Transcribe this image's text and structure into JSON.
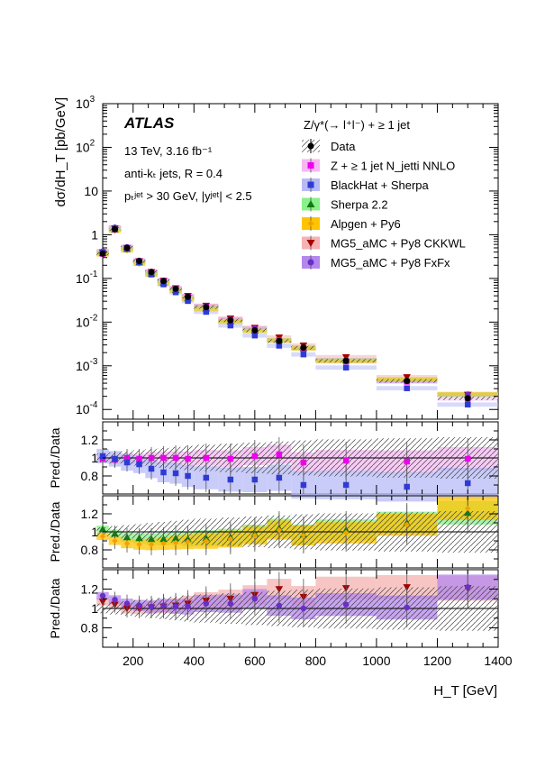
{
  "chart_data": {
    "type": "scatter",
    "title": "",
    "xlabel": "H_T [GeV]",
    "ylabel": "dσ/dH_T [pb/GeV]",
    "ratio_ylabel": "Pred./Data",
    "xlim": [
      100,
      1400
    ],
    "ylim": [
      6e-05,
      1000
    ],
    "yscale": "log",
    "ratio_ylim": [
      0.6,
      1.4
    ],
    "x_ticks": [
      200,
      400,
      600,
      800,
      1000,
      1200,
      1400
    ],
    "ratio_ticks": [
      0.8,
      1,
      1.2
    ],
    "experiment": "ATLAS",
    "energy_lumi": "13 TeV, 3.16 fb⁻¹",
    "jet_algo": "anti-kₜ jets, R = 0.4",
    "jet_cuts": "pₜʲᵉᵗ > 30 GeV, |yʲᵉᵗ| < 2.5",
    "process": "Z/γ*(→ l⁺l⁻) + ≥ 1 jet",
    "legend_position": "top-right",
    "bin_edges": [
      80,
      120,
      160,
      200,
      240,
      280,
      320,
      360,
      400,
      480,
      560,
      640,
      720,
      800,
      1000,
      1200,
      1400
    ],
    "series": [
      {
        "name": "Data",
        "color": "#000000",
        "marker": "circle",
        "values": [
          0.37,
          1.35,
          0.5,
          0.25,
          0.14,
          0.087,
          0.058,
          0.038,
          0.022,
          0.011,
          0.0065,
          0.0037,
          0.0026,
          0.0013,
          0.00045,
          0.00018
        ],
        "ratio": [
          1,
          1,
          1,
          1,
          1,
          1,
          1,
          1,
          1,
          1,
          1,
          1,
          1,
          1,
          1,
          1
        ]
      },
      {
        "name": "Z + ≥ 1 jet N_jetti NNLO",
        "color": "#ee00ee",
        "band": "#f6b8f3",
        "marker": "square",
        "ratio_panel": 0,
        "ratio": [
          0.99,
          0.98,
          1.0,
          0.99,
          1.0,
          1.0,
          1.0,
          0.99,
          1.0,
          0.99,
          1.02,
          1.04,
          0.95,
          0.97,
          0.96,
          0.99
        ]
      },
      {
        "name": "BlackHat + Sherpa",
        "color": "#2f3ad6",
        "band": "#b7bbf5",
        "marker": "square",
        "ratio_panel": 0,
        "ratio": [
          1.02,
          0.99,
          0.95,
          0.93,
          0.88,
          0.84,
          0.83,
          0.8,
          0.78,
          0.76,
          0.76,
          0.78,
          0.7,
          0.7,
          0.68,
          0.72
        ]
      },
      {
        "name": "Sherpa 2.2",
        "color": "#117a11",
        "band": "#8af08a",
        "marker": "triangle-up",
        "ratio_panel": 1,
        "ratio": [
          1.03,
          0.98,
          0.94,
          0.93,
          0.92,
          0.92,
          0.93,
          0.92,
          0.93,
          0.94,
          0.98,
          1.04,
          0.97,
          1.02,
          1.1,
          1.21
        ]
      },
      {
        "name": "Alpgen + Py6",
        "color": "#f5a000",
        "band": "#ffc400",
        "marker": "diamond",
        "ratio_panel": 1,
        "ratio": [
          0.95,
          0.9,
          0.87,
          0.86,
          0.86,
          0.87,
          0.88,
          0.89,
          0.9,
          0.92,
          0.96,
          1.02,
          0.96,
          0.99,
          1.08,
          1.26
        ]
      },
      {
        "name": "MG5_aMC + Py8 CKKWL",
        "color": "#a50000",
        "band": "#f5b2b2",
        "marker": "triangle-down",
        "ratio_panel": 2,
        "ratio": [
          1.07,
          1.04,
          1.0,
          1.0,
          1.01,
          1.02,
          1.03,
          1.05,
          1.08,
          1.1,
          1.14,
          1.2,
          1.12,
          1.21,
          1.22,
          1.21
        ]
      },
      {
        "name": "MG5_aMC + Py8 FxFx",
        "color": "#6a2fc4",
        "band": "#b487ee",
        "marker": "circle",
        "ratio_panel": 2,
        "ratio": [
          1.13,
          1.09,
          1.05,
          1.03,
          1.02,
          1.03,
          1.02,
          1.02,
          1.05,
          1.05,
          1.1,
          1.03,
          1.0,
          1.04,
          1.01,
          1.22
        ]
      }
    ]
  }
}
